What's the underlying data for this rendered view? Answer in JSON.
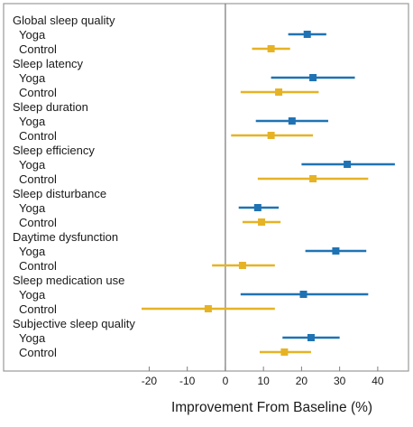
{
  "colors": {
    "yoga": "#1f73b4",
    "control": "#e6b325",
    "frame": "#9a9a9a",
    "zero_line": "#7f7f7f",
    "text": "#1a1a1a"
  },
  "chart_data": {
    "type": "forest",
    "xlabel": "Improvement From Baseline (%)",
    "xlim": [
      -22,
      45
    ],
    "xticks": [
      -20,
      -10,
      0,
      10,
      20,
      30,
      40
    ],
    "reference_line": 0,
    "grid": false,
    "series": [
      {
        "name": "Yoga",
        "color_key": "yoga"
      },
      {
        "name": "Control",
        "color_key": "control"
      }
    ],
    "categories": [
      {
        "name": "Global sleep quality",
        "rows": [
          {
            "label": "Yoga",
            "value": 21.5,
            "ci": [
              16.5,
              26.5
            ]
          },
          {
            "label": "Control",
            "value": 12.0,
            "ci": [
              7.0,
              17.0
            ]
          }
        ]
      },
      {
        "name": "Sleep latency",
        "rows": [
          {
            "label": "Yoga",
            "value": 23.0,
            "ci": [
              12.0,
              34.0
            ]
          },
          {
            "label": "Control",
            "value": 14.0,
            "ci": [
              4.0,
              24.5
            ]
          }
        ]
      },
      {
        "name": "Sleep duration",
        "rows": [
          {
            "label": "Yoga",
            "value": 17.5,
            "ci": [
              8.0,
              27.0
            ]
          },
          {
            "label": "Control",
            "value": 12.0,
            "ci": [
              1.5,
              23.0
            ]
          }
        ]
      },
      {
        "name": "Sleep efficiency",
        "rows": [
          {
            "label": "Yoga",
            "value": 32.0,
            "ci": [
              20.0,
              44.5
            ]
          },
          {
            "label": "Control",
            "value": 23.0,
            "ci": [
              8.5,
              37.5
            ]
          }
        ]
      },
      {
        "name": "Sleep disturbance",
        "rows": [
          {
            "label": "Yoga",
            "value": 8.5,
            "ci": [
              3.5,
              14.0
            ]
          },
          {
            "label": "Control",
            "value": 9.5,
            "ci": [
              4.5,
              14.5
            ]
          }
        ]
      },
      {
        "name": "Daytime dysfunction",
        "rows": [
          {
            "label": "Yoga",
            "value": 29.0,
            "ci": [
              21.0,
              37.0
            ]
          },
          {
            "label": "Control",
            "value": 4.5,
            "ci": [
              -3.5,
              13.0
            ]
          }
        ]
      },
      {
        "name": "Sleep medication use",
        "rows": [
          {
            "label": "Yoga",
            "value": 20.5,
            "ci": [
              4.0,
              37.5
            ]
          },
          {
            "label": "Control",
            "value": -4.5,
            "ci": [
              -22.0,
              13.0
            ]
          }
        ]
      },
      {
        "name": "Subjective sleep quality",
        "rows": [
          {
            "label": "Yoga",
            "value": 22.5,
            "ci": [
              15.0,
              30.0
            ]
          },
          {
            "label": "Control",
            "value": 15.5,
            "ci": [
              9.0,
              22.5
            ]
          }
        ]
      }
    ]
  }
}
